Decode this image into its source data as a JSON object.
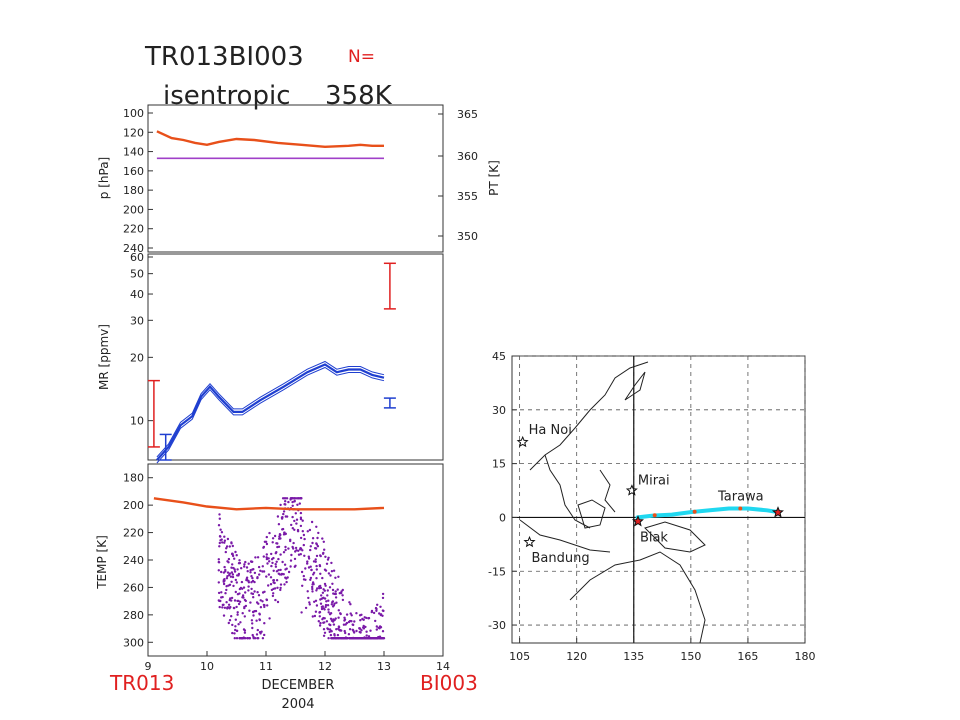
{
  "header": {
    "line1": "TR013BI003",
    "n_label": "N=",
    "line2_word": "isentropic",
    "line2_value": "358K"
  },
  "bottom": {
    "left_label": "TR013",
    "right_label": "BI003",
    "month": "DECEMBER",
    "year": "2004"
  },
  "colors": {
    "orange": "#e8501a",
    "purple": "#a040c8",
    "blue": "#1f3fd0",
    "red": "#e02020",
    "violet": "#7a1aa8",
    "cyan": "#20d8f0"
  },
  "chart_data": [
    {
      "type": "line",
      "ylabel": "p [hPa]",
      "y2label": "PT [K]",
      "x": {
        "lim": [
          9,
          14
        ],
        "ticks": [
          9,
          10,
          11,
          12,
          13,
          14
        ]
      },
      "yticks": [
        "100",
        "120",
        "140",
        "160",
        "180",
        "200",
        "220",
        "240"
      ],
      "y2ticks": [
        "365",
        "360",
        "355",
        "350"
      ],
      "series": [
        {
          "color": "orange",
          "points": [
            [
              9.15,
              119
            ],
            [
              9.4,
              126
            ],
            [
              9.6,
              128
            ],
            [
              9.8,
              131
            ],
            [
              10.0,
              133
            ],
            [
              10.2,
              130
            ],
            [
              10.5,
              127
            ],
            [
              10.8,
              128
            ],
            [
              11.2,
              131
            ],
            [
              11.6,
              133
            ],
            [
              12.0,
              135
            ],
            [
              12.4,
              134
            ],
            [
              12.6,
              133
            ],
            [
              12.8,
              134
            ],
            [
              13.0,
              134
            ]
          ]
        },
        {
          "color": "purple",
          "points": [
            [
              9.15,
              147
            ],
            [
              13.0,
              147
            ]
          ]
        }
      ]
    },
    {
      "type": "line",
      "ylabel": "MR [ppmv]",
      "scale": "log",
      "x": {
        "lim": [
          9,
          14
        ],
        "ticks": [
          9,
          10,
          11,
          12,
          13,
          14
        ]
      },
      "ylim": [
        6.5,
        62
      ],
      "yticks": [
        "60",
        "50",
        "40",
        "30",
        "20",
        "10"
      ],
      "series": [
        {
          "color": "blue",
          "points": [
            [
              9.15,
              6.5
            ],
            [
              9.35,
              7.5
            ],
            [
              9.55,
              9.5
            ],
            [
              9.75,
              10.5
            ],
            [
              9.9,
              13
            ],
            [
              10.05,
              14.5
            ],
            [
              10.2,
              13
            ],
            [
              10.45,
              11
            ],
            [
              10.6,
              11
            ],
            [
              10.9,
              12.5
            ],
            [
              11.3,
              14.5
            ],
            [
              11.7,
              17
            ],
            [
              12.0,
              18.5
            ],
            [
              12.2,
              17
            ],
            [
              12.4,
              17.5
            ],
            [
              12.6,
              17.5
            ],
            [
              12.8,
              16.5
            ],
            [
              13.0,
              16
            ]
          ]
        }
      ],
      "error_bars": [
        {
          "color": "red",
          "x": 13.1,
          "low": 34,
          "high": 56
        },
        {
          "color": "blue",
          "x": 13.1,
          "low": 11.5,
          "high": 12.8
        },
        {
          "color": "red",
          "x": 9.1,
          "low": 7.5,
          "high": 15.5
        },
        {
          "color": "blue",
          "x": 9.3,
          "low": 6.5,
          "high": 8.6
        }
      ]
    },
    {
      "type": "scatter",
      "ylabel": "TEMP [K]",
      "x": {
        "lim": [
          9,
          14
        ],
        "ticks": [
          9,
          10,
          11,
          12,
          13,
          14
        ]
      },
      "ylim": [
        170,
        310
      ],
      "yticks": [
        "180",
        "200",
        "220",
        "240",
        "260",
        "280",
        "300"
      ],
      "line": {
        "color": "orange",
        "points": [
          [
            9.1,
            195
          ],
          [
            9.6,
            198
          ],
          [
            10.0,
            201
          ],
          [
            10.5,
            203
          ],
          [
            11.0,
            202
          ],
          [
            11.5,
            203
          ],
          [
            12.0,
            203
          ],
          [
            12.5,
            203
          ],
          [
            13.0,
            202
          ]
        ]
      },
      "scatter": {
        "color": "violet",
        "x_range": [
          10.2,
          13.0
        ],
        "y_range": [
          195,
          297
        ]
      }
    },
    {
      "type": "line",
      "x": {
        "ticks": [
          "105",
          "120",
          "135",
          "150",
          "165",
          "180"
        ],
        "lim": [
          103,
          180
        ]
      },
      "ylim": [
        -35,
        45
      ],
      "yticks": [
        "45",
        "30",
        "15",
        "0",
        "-15",
        "-30"
      ],
      "places": [
        {
          "name": "Ha Noi",
          "lon": 105.8,
          "lat": 21
        },
        {
          "name": "Mirai",
          "lon": 134.5,
          "lat": 7.5
        },
        {
          "name": "Tarawa",
          "lon": 172.9,
          "lat": 1.4
        },
        {
          "name": "Biak",
          "lon": 136.1,
          "lat": -1.1
        },
        {
          "name": "Bandung",
          "lon": 107.6,
          "lat": -6.9
        }
      ],
      "trajectory": {
        "color": "cyan",
        "points": [
          [
            136,
            0
          ],
          [
            140,
            0.5
          ],
          [
            145,
            0.8
          ],
          [
            150,
            1.5
          ],
          [
            155,
            2
          ],
          [
            160,
            2.5
          ],
          [
            165,
            2.5
          ],
          [
            170,
            2
          ],
          [
            173,
            1.5
          ]
        ]
      }
    }
  ]
}
